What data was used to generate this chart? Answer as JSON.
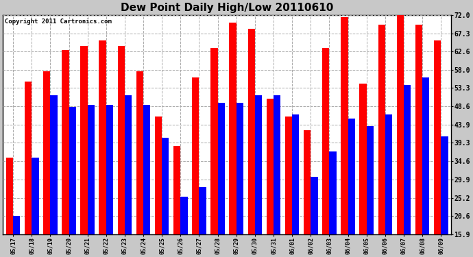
{
  "title": "Dew Point Daily High/Low 20110610",
  "copyright": "Copyright 2011 Cartronics.com",
  "dates": [
    "05/17",
    "05/18",
    "05/19",
    "05/20",
    "05/21",
    "05/22",
    "05/23",
    "05/24",
    "05/25",
    "05/26",
    "05/27",
    "05/28",
    "05/29",
    "05/30",
    "05/31",
    "06/01",
    "06/02",
    "06/03",
    "06/04",
    "06/05",
    "06/06",
    "06/07",
    "06/08",
    "06/09"
  ],
  "highs": [
    35.5,
    55.0,
    57.5,
    63.0,
    64.0,
    65.5,
    64.0,
    57.5,
    46.0,
    38.5,
    56.0,
    63.5,
    70.0,
    68.5,
    50.5,
    46.0,
    42.5,
    63.5,
    71.5,
    54.5,
    69.5,
    72.0,
    69.5,
    65.5
  ],
  "lows": [
    20.5,
    35.5,
    51.5,
    48.5,
    49.0,
    49.0,
    51.5,
    49.0,
    40.5,
    25.5,
    28.0,
    49.5,
    49.5,
    51.5,
    51.5,
    46.5,
    30.5,
    37.0,
    45.5,
    43.5,
    46.5,
    54.0,
    56.0,
    41.0
  ],
  "high_color": "#ff0000",
  "low_color": "#0000ff",
  "bg_color": "#c8c8c8",
  "plot_bg_color": "#ffffff",
  "yticks": [
    15.9,
    20.6,
    25.2,
    29.9,
    34.6,
    39.3,
    43.9,
    48.6,
    53.3,
    58.0,
    62.6,
    67.3,
    72.0
  ],
  "ymin": 15.9,
  "ymax": 72.0,
  "title_fontsize": 11,
  "copyright_fontsize": 6.5,
  "xtick_fontsize": 6,
  "ytick_fontsize": 7
}
